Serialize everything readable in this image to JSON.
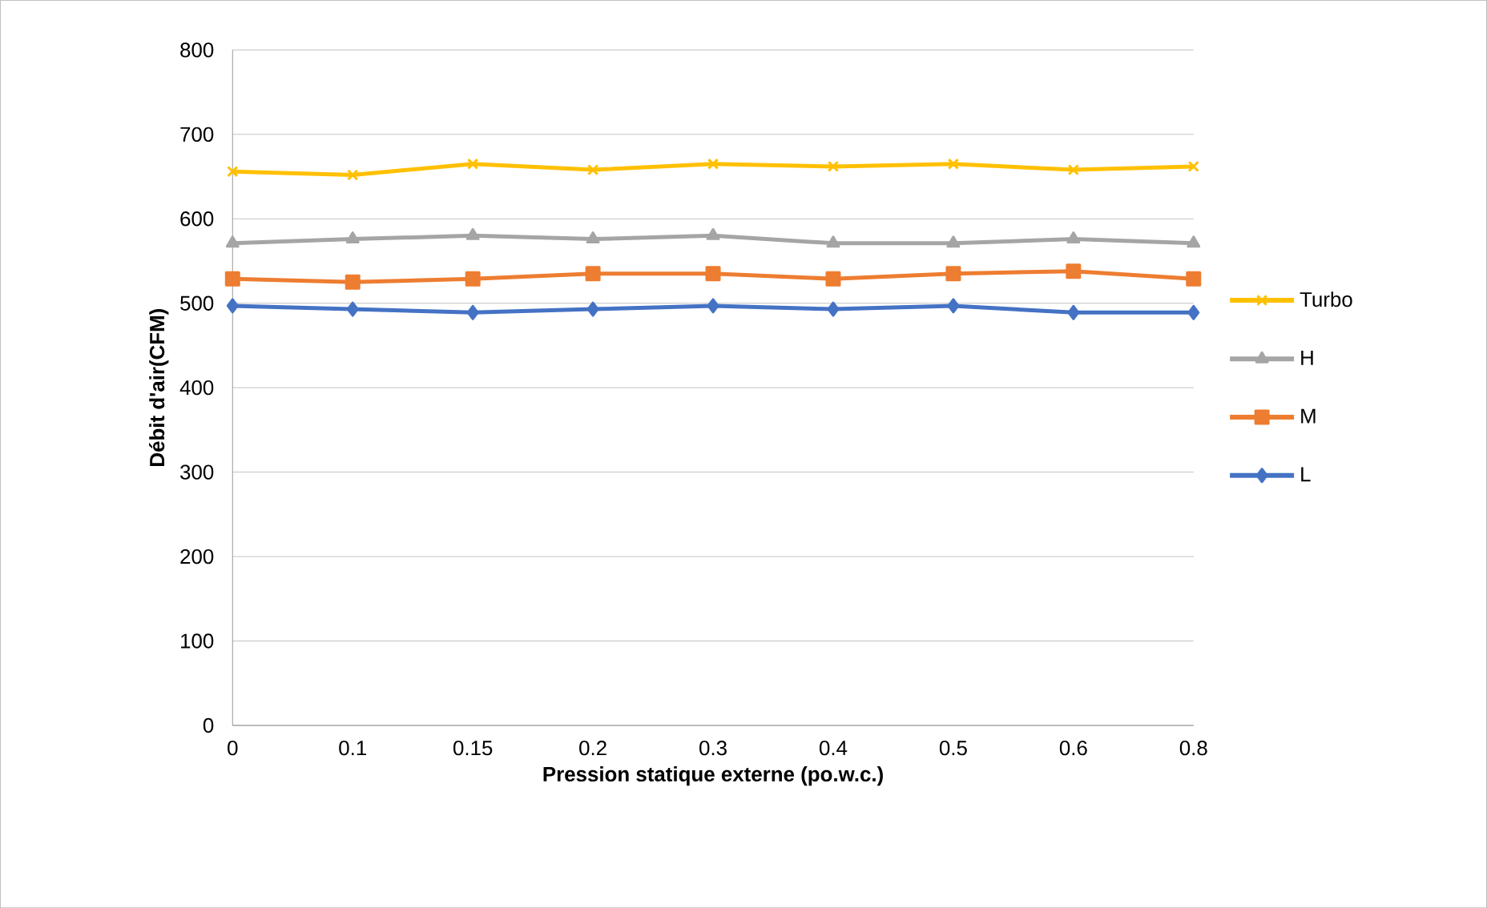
{
  "chart_data": {
    "type": "line",
    "xlabel": "Pression statique externe (po.w.c.)",
    "ylabel": "Débit d'air(CFM)",
    "categories": [
      "0",
      "0.1",
      "0.15",
      "0.2",
      "0.3",
      "0.4",
      "0.5",
      "0.6",
      "0.8"
    ],
    "series": [
      {
        "name": "Turbo",
        "color": "#ffc000",
        "marker": "cross",
        "values": [
          656,
          652,
          665,
          658,
          665,
          662,
          665,
          658,
          662
        ]
      },
      {
        "name": "H",
        "color": "#a5a5a5",
        "marker": "triangle",
        "values": [
          571,
          576,
          580,
          576,
          580,
          571,
          571,
          576,
          571
        ]
      },
      {
        "name": "M",
        "color": "#ed7d31",
        "marker": "square",
        "values": [
          529,
          525,
          529,
          535,
          535,
          529,
          535,
          538,
          529
        ]
      },
      {
        "name": "L",
        "color": "#4472c4",
        "marker": "diamond",
        "values": [
          497,
          493,
          489,
          493,
          497,
          493,
          497,
          489,
          489
        ]
      }
    ],
    "ylim": [
      0,
      800
    ],
    "yticks": [
      0,
      100,
      200,
      300,
      400,
      500,
      600,
      700,
      800
    ],
    "grid": "y",
    "legend": "right",
    "line_style": "solid"
  }
}
